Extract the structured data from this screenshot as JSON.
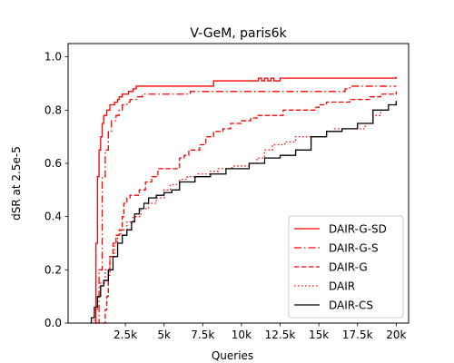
{
  "chart_data": {
    "type": "line",
    "title": "V-GeM, paris6k",
    "xlabel": "Queries",
    "ylabel": "dSR at 2.5e-5",
    "xlim": [
      -1200,
      20800
    ],
    "ylim": [
      0,
      1.05
    ],
    "xticks": [
      2500,
      5000,
      7500,
      10000,
      12500,
      15000,
      17500,
      20000
    ],
    "xtick_labels": [
      "2.5k",
      "5k",
      "7.5k",
      "10k",
      "12.5k",
      "15k",
      "17.5k",
      "20k"
    ],
    "yticks": [
      0,
      0.2,
      0.4,
      0.6,
      0.8,
      1.0
    ],
    "ytick_labels": [
      "0.0",
      "0.2",
      "0.4",
      "0.6",
      "0.8",
      "1.0"
    ],
    "grid": false,
    "legend_position": "lower-right",
    "series": [
      {
        "name": "DAIR-G-SD",
        "color": "#ff0000",
        "dash": "solid",
        "points": [
          [
            500,
            0
          ],
          [
            600,
            0.3
          ],
          [
            700,
            0.55
          ],
          [
            800,
            0.65
          ],
          [
            900,
            0.7
          ],
          [
            1000,
            0.75
          ],
          [
            1100,
            0.78
          ],
          [
            1300,
            0.8
          ],
          [
            1500,
            0.82
          ],
          [
            1800,
            0.83
          ],
          [
            2000,
            0.84
          ],
          [
            2100,
            0.85
          ],
          [
            2300,
            0.86
          ],
          [
            2600,
            0.86
          ],
          [
            2700,
            0.87
          ],
          [
            3000,
            0.88
          ],
          [
            3200,
            0.89
          ],
          [
            8000,
            0.89
          ],
          [
            8200,
            0.91
          ],
          [
            11000,
            0.91
          ],
          [
            11100,
            0.92
          ],
          [
            11300,
            0.91
          ],
          [
            11500,
            0.92
          ],
          [
            11700,
            0.91
          ],
          [
            11900,
            0.92
          ],
          [
            12100,
            0.91
          ],
          [
            12500,
            0.92
          ],
          [
            20000,
            0.925
          ]
        ]
      },
      {
        "name": "DAIR-G-S",
        "color": "#ff0000",
        "dash": "dashdot",
        "points": [
          [
            600,
            0
          ],
          [
            800,
            0.2
          ],
          [
            1000,
            0.55
          ],
          [
            1200,
            0.65
          ],
          [
            1400,
            0.72
          ],
          [
            1600,
            0.76
          ],
          [
            1900,
            0.78
          ],
          [
            2100,
            0.8
          ],
          [
            2300,
            0.82
          ],
          [
            2600,
            0.83
          ],
          [
            2800,
            0.84
          ],
          [
            3000,
            0.84
          ],
          [
            3300,
            0.85
          ],
          [
            3600,
            0.86
          ],
          [
            6500,
            0.86
          ],
          [
            6700,
            0.87
          ],
          [
            16500,
            0.87
          ],
          [
            16700,
            0.88
          ],
          [
            17000,
            0.89
          ],
          [
            20000,
            0.89
          ]
        ]
      },
      {
        "name": "DAIR-G",
        "color": "#ff0000",
        "dash": "dashed",
        "points": [
          [
            1000,
            0
          ],
          [
            1200,
            0.05
          ],
          [
            1300,
            0.1
          ],
          [
            1400,
            0.18
          ],
          [
            1500,
            0.25
          ],
          [
            1700,
            0.3
          ],
          [
            1900,
            0.33
          ],
          [
            2100,
            0.35
          ],
          [
            2300,
            0.4
          ],
          [
            2400,
            0.45
          ],
          [
            2600,
            0.47
          ],
          [
            2800,
            0.48
          ],
          [
            3200,
            0.48
          ],
          [
            3400,
            0.5
          ],
          [
            3800,
            0.53
          ],
          [
            4200,
            0.55
          ],
          [
            4600,
            0.58
          ],
          [
            5600,
            0.58
          ],
          [
            6000,
            0.62
          ],
          [
            6300,
            0.63
          ],
          [
            6600,
            0.65
          ],
          [
            7300,
            0.67
          ],
          [
            7700,
            0.7
          ],
          [
            8200,
            0.72
          ],
          [
            8800,
            0.73
          ],
          [
            9300,
            0.75
          ],
          [
            10000,
            0.76
          ],
          [
            10600,
            0.77
          ],
          [
            11000,
            0.78
          ],
          [
            12500,
            0.78
          ],
          [
            12700,
            0.8
          ],
          [
            14500,
            0.8
          ],
          [
            14800,
            0.81
          ],
          [
            15000,
            0.82
          ],
          [
            15500,
            0.83
          ],
          [
            17000,
            0.84
          ],
          [
            18300,
            0.85
          ],
          [
            19000,
            0.86
          ],
          [
            20000,
            0.87
          ]
        ]
      },
      {
        "name": "DAIR",
        "color": "#ff0000",
        "dash": "dotted",
        "points": [
          [
            400,
            0
          ],
          [
            500,
            0.05
          ],
          [
            700,
            0.1
          ],
          [
            900,
            0.15
          ],
          [
            1200,
            0.2
          ],
          [
            1500,
            0.25
          ],
          [
            1800,
            0.3
          ],
          [
            2000,
            0.33
          ],
          [
            2200,
            0.35
          ],
          [
            2600,
            0.38
          ],
          [
            3000,
            0.4
          ],
          [
            3500,
            0.43
          ],
          [
            4000,
            0.45
          ],
          [
            4500,
            0.47
          ],
          [
            5000,
            0.5
          ],
          [
            5400,
            0.52
          ],
          [
            6000,
            0.54
          ],
          [
            6500,
            0.55
          ],
          [
            7200,
            0.56
          ],
          [
            8000,
            0.57
          ],
          [
            8500,
            0.58
          ],
          [
            9400,
            0.59
          ],
          [
            10500,
            0.6
          ],
          [
            11000,
            0.62
          ],
          [
            11500,
            0.65
          ],
          [
            12000,
            0.67
          ],
          [
            12800,
            0.68
          ],
          [
            13500,
            0.7
          ],
          [
            15000,
            0.7
          ],
          [
            15500,
            0.72
          ],
          [
            16000,
            0.73
          ],
          [
            17500,
            0.73
          ],
          [
            18000,
            0.75
          ],
          [
            18500,
            0.78
          ],
          [
            19000,
            0.8
          ],
          [
            19500,
            0.82
          ],
          [
            20000,
            0.83
          ]
        ]
      },
      {
        "name": "DAIR-CS",
        "color": "#000000",
        "dash": "solid",
        "points": [
          [
            200,
            0
          ],
          [
            300,
            0.02
          ],
          [
            500,
            0.06
          ],
          [
            700,
            0.1
          ],
          [
            900,
            0.14
          ],
          [
            1100,
            0.16
          ],
          [
            1400,
            0.2
          ],
          [
            1700,
            0.25
          ],
          [
            2000,
            0.3
          ],
          [
            2300,
            0.33
          ],
          [
            2600,
            0.35
          ],
          [
            2900,
            0.38
          ],
          [
            3100,
            0.41
          ],
          [
            3400,
            0.43
          ],
          [
            3700,
            0.45
          ],
          [
            4000,
            0.47
          ],
          [
            4500,
            0.48
          ],
          [
            5000,
            0.49
          ],
          [
            5500,
            0.5
          ],
          [
            6000,
            0.53
          ],
          [
            7000,
            0.55
          ],
          [
            8000,
            0.56
          ],
          [
            9000,
            0.58
          ],
          [
            10000,
            0.58
          ],
          [
            10500,
            0.6
          ],
          [
            11500,
            0.62
          ],
          [
            12500,
            0.63
          ],
          [
            13500,
            0.65
          ],
          [
            14500,
            0.7
          ],
          [
            15500,
            0.72
          ],
          [
            16500,
            0.73
          ],
          [
            17500,
            0.75
          ],
          [
            18500,
            0.8
          ],
          [
            19500,
            0.82
          ],
          [
            20000,
            0.835
          ]
        ]
      }
    ]
  }
}
